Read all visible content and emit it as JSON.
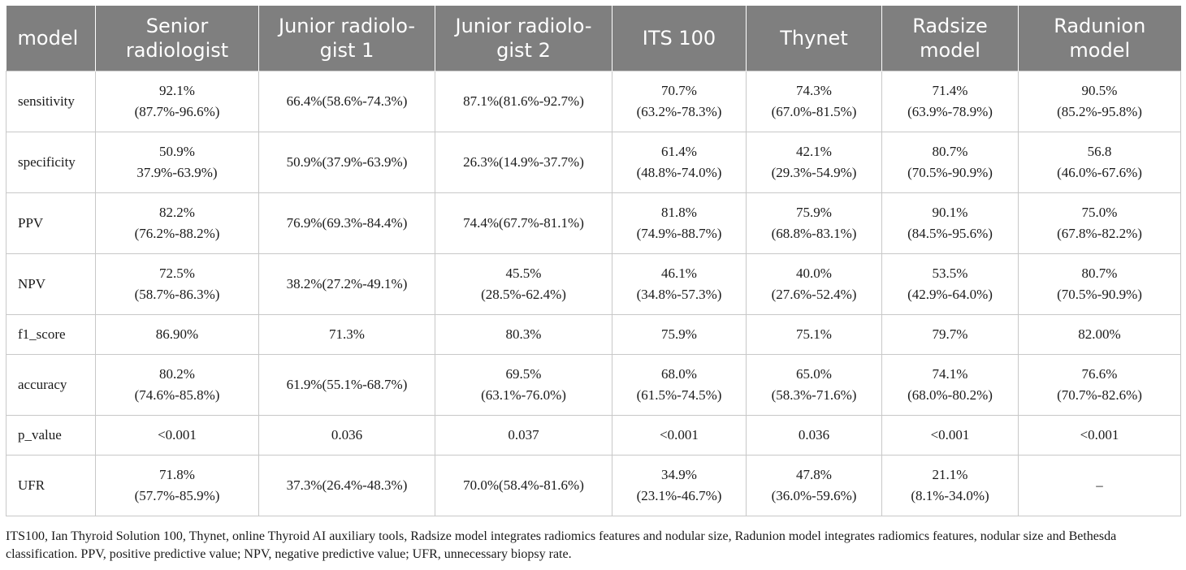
{
  "table": {
    "headers": [
      "model",
      "Senior\nradiologist",
      "Junior radiolo-\ngist 1",
      "Junior radiolo-\ngist 2",
      "ITS 100",
      "Thynet",
      "Radsize\nmodel",
      "Radunion\nmodel"
    ],
    "rows": [
      {
        "metric": "sensitivity",
        "cells": [
          "92.1%\n(87.7%-96.6%)",
          "66.4%(58.6%-74.3%)",
          "87.1%(81.6%-92.7%)",
          "70.7%\n(63.2%-78.3%)",
          "74.3%\n(67.0%-81.5%)",
          "71.4%\n(63.9%-78.9%)",
          "90.5%\n(85.2%-95.8%)"
        ]
      },
      {
        "metric": "specificity",
        "cells": [
          "50.9%\n37.9%-63.9%)",
          "50.9%(37.9%-63.9%)",
          "26.3%(14.9%-37.7%)",
          "61.4%\n(48.8%-74.0%)",
          "42.1%\n(29.3%-54.9%)",
          "80.7%\n(70.5%-90.9%)",
          "56.8\n(46.0%-67.6%)"
        ]
      },
      {
        "metric": "PPV",
        "cells": [
          "82.2%\n(76.2%-88.2%)",
          "76.9%(69.3%-84.4%)",
          "74.4%(67.7%-81.1%)",
          "81.8%\n(74.9%-88.7%)",
          "75.9%\n(68.8%-83.1%)",
          "90.1%\n(84.5%-95.6%)",
          "75.0%\n(67.8%-82.2%)"
        ]
      },
      {
        "metric": "NPV",
        "cells": [
          "72.5%\n(58.7%-86.3%)",
          "38.2%(27.2%-49.1%)",
          "45.5%\n(28.5%-62.4%)",
          "46.1%\n(34.8%-57.3%)",
          "40.0%\n(27.6%-52.4%)",
          "53.5%\n(42.9%-64.0%)",
          "80.7%\n(70.5%-90.9%)"
        ]
      },
      {
        "metric": "f1_score",
        "cells": [
          "86.90%",
          "71.3%",
          "80.3%",
          "75.9%",
          "75.1%",
          "79.7%",
          "82.00%"
        ]
      },
      {
        "metric": "accuracy",
        "cells": [
          "80.2%\n(74.6%-85.8%)",
          "61.9%(55.1%-68.7%)",
          "69.5%\n(63.1%-76.0%)",
          "68.0%\n(61.5%-74.5%)",
          "65.0%\n(58.3%-71.6%)",
          "74.1%\n(68.0%-80.2%)",
          "76.6%\n(70.7%-82.6%)"
        ]
      },
      {
        "metric": "p_value",
        "cells": [
          "<0.001",
          "0.036",
          "0.037",
          "<0.001",
          "0.036",
          "<0.001",
          "<0.001"
        ]
      },
      {
        "metric": "UFR",
        "cells": [
          "71.8%\n(57.7%-85.9%)",
          "37.3%(26.4%-48.3%)",
          "70.0%(58.4%-81.6%)",
          "34.9%\n(23.1%-46.7%)",
          "47.8%\n(36.0%-59.6%)",
          "21.1%\n(8.1%-34.0%)",
          "–"
        ]
      }
    ]
  },
  "footnote": "ITS100, Ian Thyroid Solution 100, Thynet, online Thyroid AI auxiliary tools, Radsize model integrates radiomics features and nodular size, Radunion model integrates radiomics features, nodular size and Bethesda classification. PPV, positive predictive value; NPV, negative predictive value; UFR, unnecessary biopsy rate.",
  "colors": {
    "header_bg": "#7f7f7f",
    "header_text": "#ffffff",
    "grid": "#c8c8c8"
  }
}
